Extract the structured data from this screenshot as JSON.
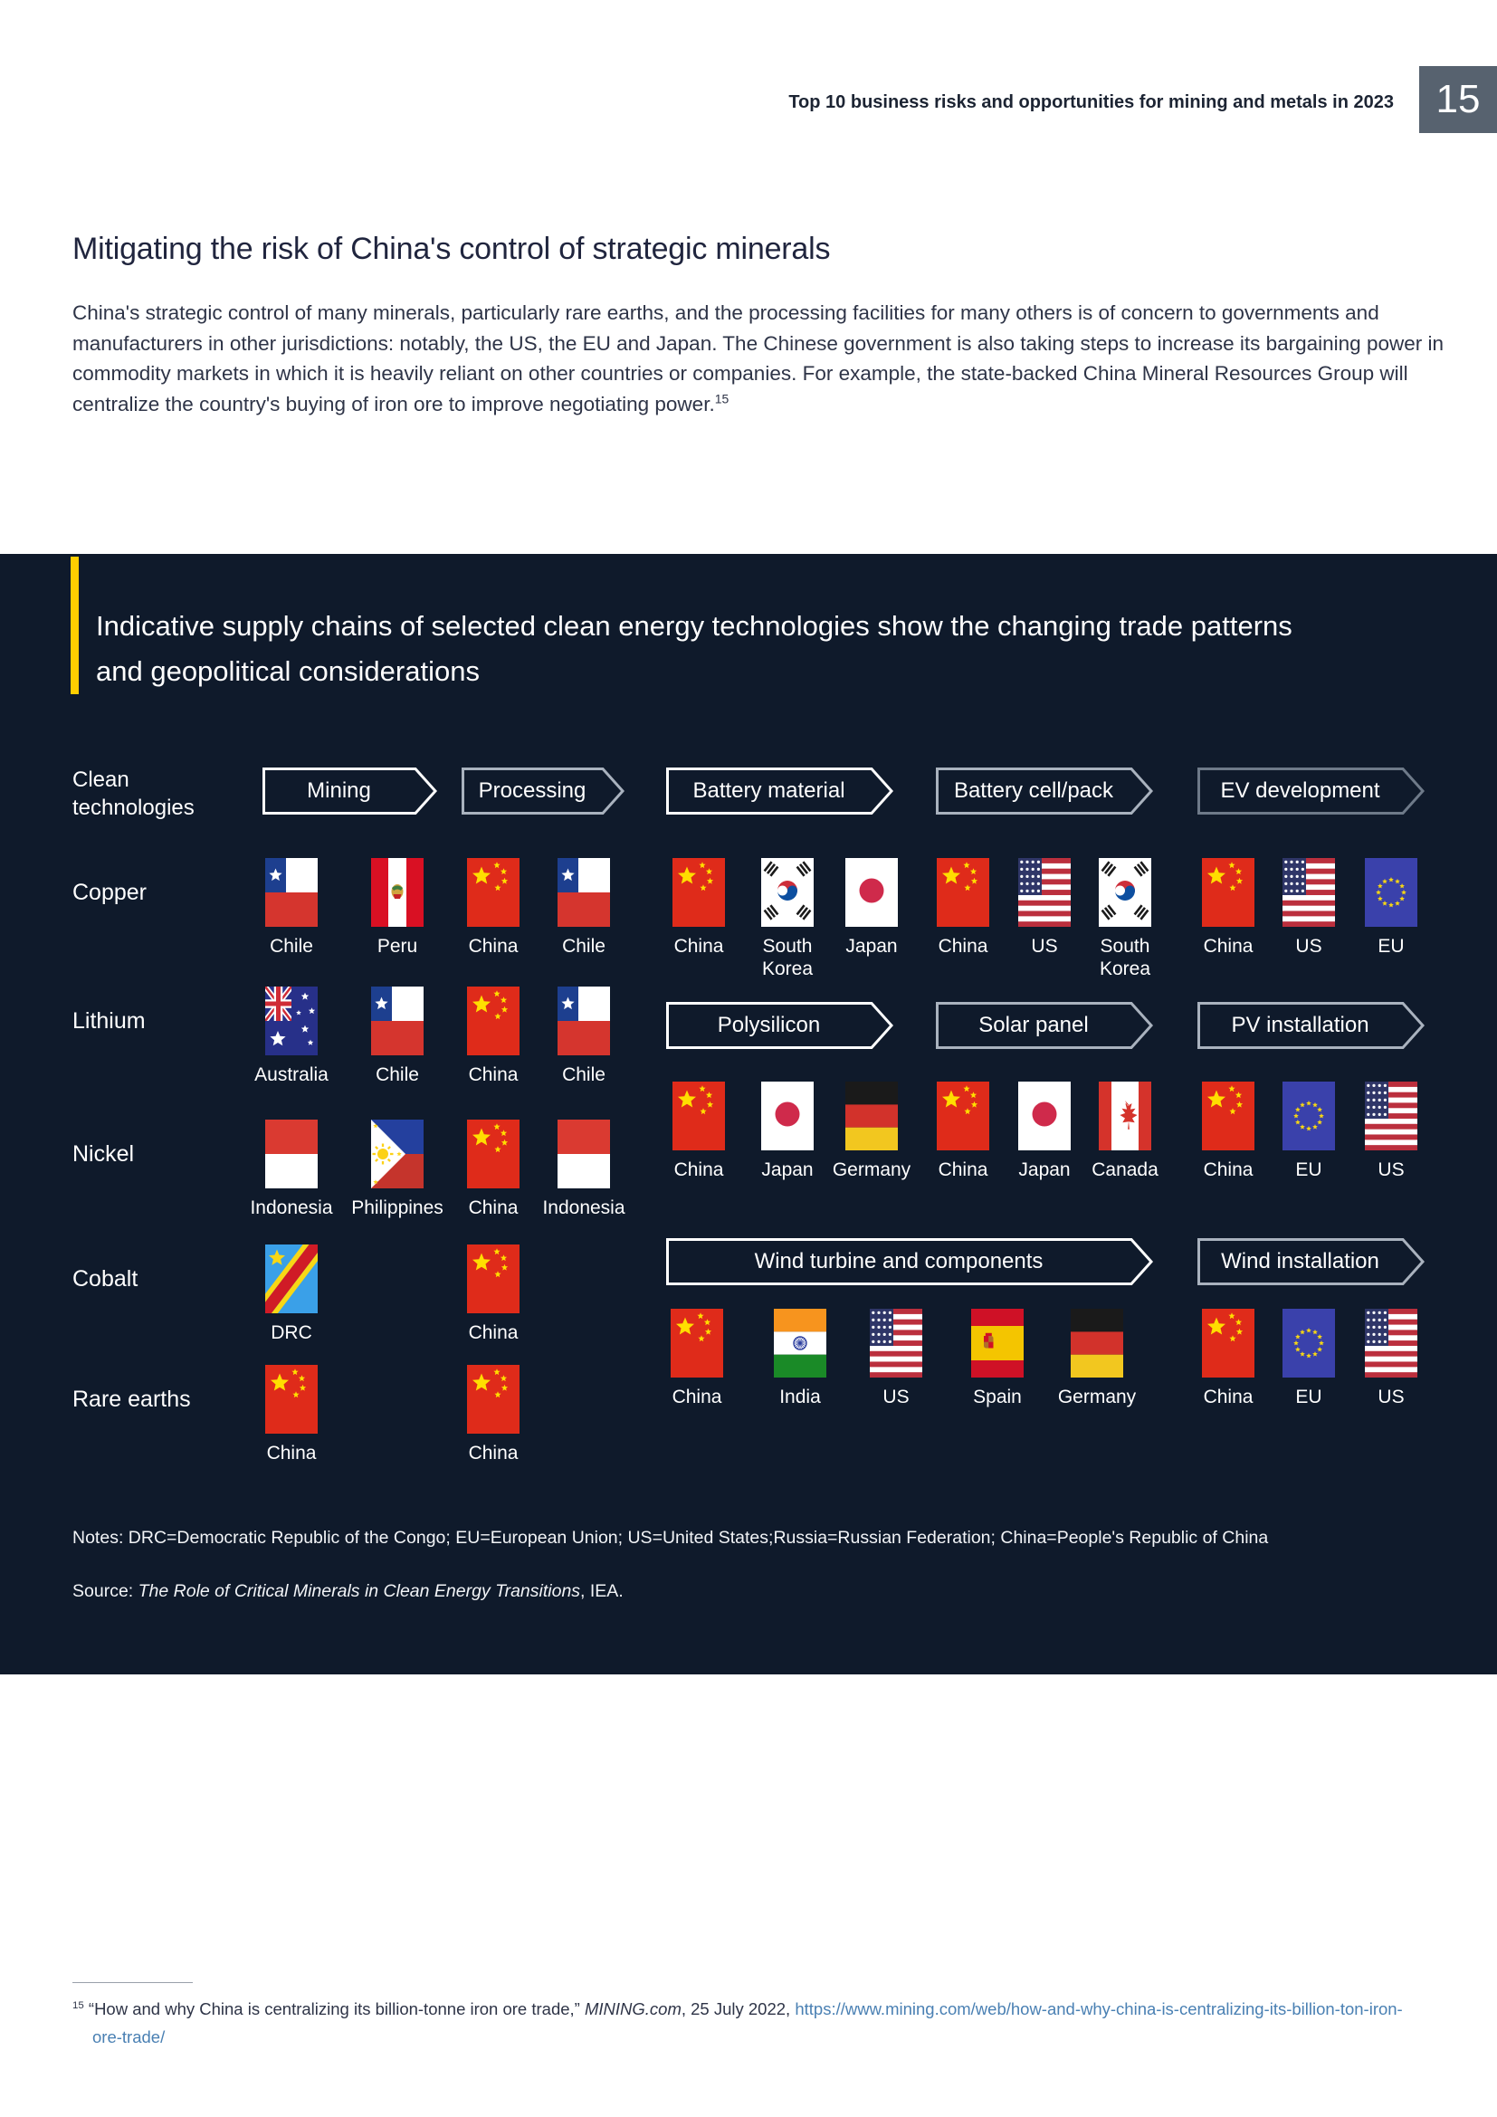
{
  "header": {
    "title": "Top 10 business risks and opportunities for mining and metals in 2023",
    "page_number": "15"
  },
  "article": {
    "title": "Mitigating the risk of China's control of strategic minerals",
    "body": "China's strategic control of many minerals, particularly rare earths, and the processing facilities for many others is of concern to governments and manufacturers in other jurisdictions: notably, the US, the EU and Japan. The Chinese government is also taking steps to increase its bargaining power in commodity markets in which it is heavily reliant on other countries or companies. For example, the state-backed China Mineral Resources Group will centralize the country's buying of iron ore to improve negotiating power.",
    "footnote_ref": "15"
  },
  "panel": {
    "title": "Indicative supply chains of selected clean energy technologies show the changing trade patterns and geopolitical considerations",
    "notes": "Notes: DRC=Democratic Republic of the Congo; EU=European Union; US=United States;Russia=Russian Federation; China=People's Republic of China",
    "source_prefix": "Source: ",
    "source_title": "The Role of Critical Minerals in Clean Energy Transitions",
    "source_suffix": ", IEA."
  },
  "diagram": {
    "row_header": "Clean technologies",
    "left_stages": [
      {
        "label": "Mining",
        "style": "white"
      },
      {
        "label": "Processing",
        "style": "silver"
      }
    ],
    "minerals": [
      {
        "name": "Copper",
        "mining": [
          "Chile",
          "Peru"
        ],
        "processing": [
          "China",
          "Chile"
        ]
      },
      {
        "name": "Lithium",
        "mining": [
          "Australia",
          "Chile"
        ],
        "processing": [
          "China",
          "Chile"
        ]
      },
      {
        "name": "Nickel",
        "mining": [
          "Indonesia",
          "Philippines"
        ],
        "processing": [
          "China",
          "Indonesia"
        ]
      },
      {
        "name": "Cobalt",
        "mining": [
          "DRC"
        ],
        "processing": [
          "China"
        ]
      },
      {
        "name": "Rare earths",
        "mining": [
          "China"
        ],
        "processing": [
          "China"
        ]
      }
    ],
    "chains": [
      {
        "name": "battery",
        "stages": [
          {
            "label": "Battery material",
            "style": "white",
            "countries": [
              "China",
              "South Korea",
              "Japan"
            ]
          },
          {
            "label": "Battery cell/pack",
            "style": "silver",
            "countries": [
              "China",
              "US",
              "South Korea"
            ]
          },
          {
            "label": "EV development",
            "style": "dark",
            "countries": [
              "China",
              "US",
              "EU"
            ]
          }
        ]
      },
      {
        "name": "solar",
        "stages": [
          {
            "label": "Polysilicon",
            "style": "white",
            "countries": [
              "China",
              "Japan",
              "Germany"
            ]
          },
          {
            "label": "Solar panel",
            "style": "silver",
            "countries": [
              "China",
              "Japan",
              "Canada"
            ]
          },
          {
            "label": "PV installation",
            "style": "silver",
            "countries": [
              "China",
              "EU",
              "US"
            ]
          }
        ]
      },
      {
        "name": "wind",
        "stages": [
          {
            "label": "Wind turbine and components",
            "style": "white",
            "countries": [
              "China",
              "India",
              "US",
              "Spain",
              "Germany"
            ]
          },
          {
            "label": "Wind installation",
            "style": "silver",
            "countries": [
              "China",
              "EU",
              "US"
            ]
          }
        ]
      }
    ]
  },
  "footnote": {
    "ref": "15",
    "quote": "“How and why China is centralizing its billion-tonne iron ore trade,” ",
    "source_italic": "MINING.com",
    "after": ", 25 July 2022, ",
    "url": "https://www.mining.com/web/how-and-why-china-is-centralizing-its-billion-ton-iron-ore-trade/"
  },
  "colors": {
    "accent_yellow": "#ffce00",
    "panel_bg": "#0f1a2b",
    "page_box_gray": "#57626f",
    "link_blue": "#4a80b3",
    "arrow_white": "#ffffff",
    "arrow_silver": "#a9b2be",
    "arrow_dark": "#6e7a89"
  }
}
